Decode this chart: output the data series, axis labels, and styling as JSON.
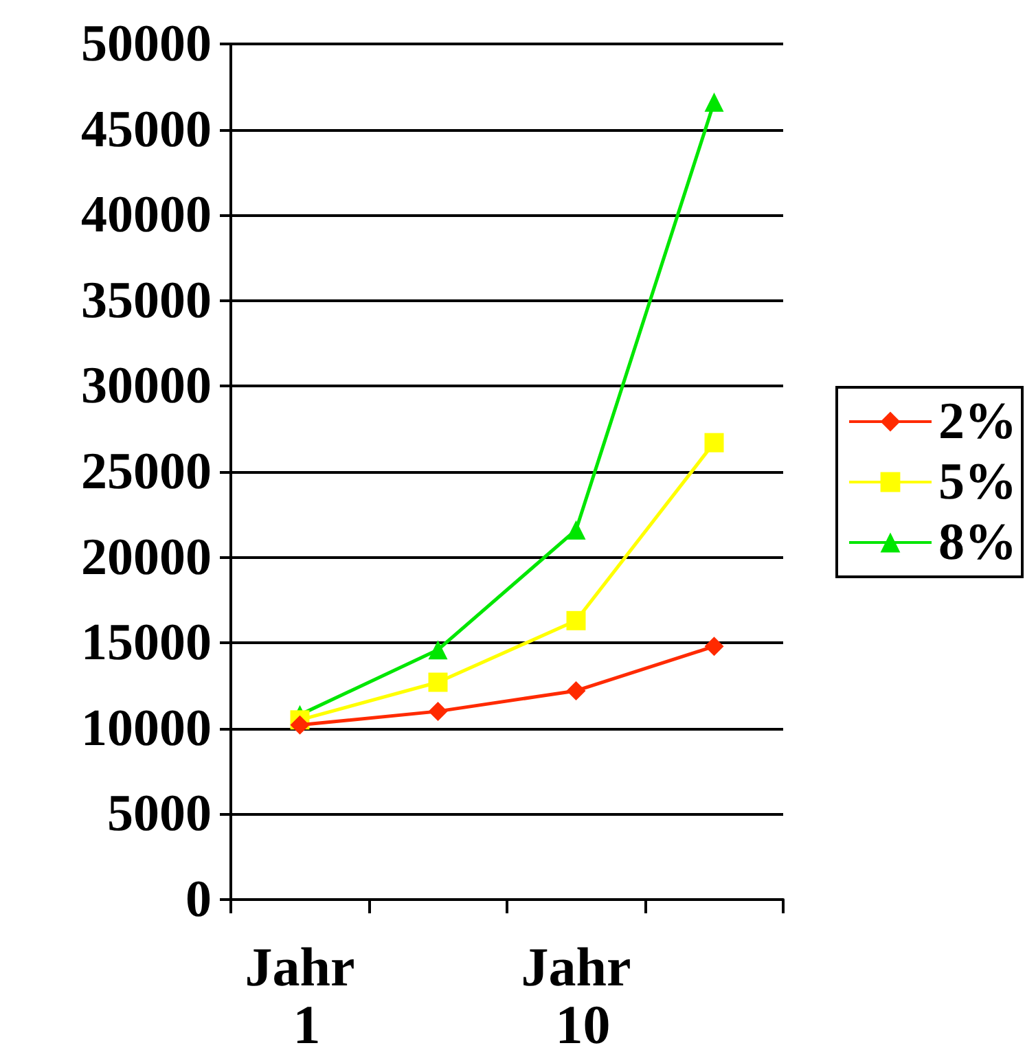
{
  "chart_data": {
    "type": "line",
    "categories": [
      "Jahr 1",
      null,
      "Jahr 10",
      null
    ],
    "series": [
      {
        "name": "2%",
        "color": "#ff2a00",
        "marker": "diamond",
        "values": [
          10200,
          11000,
          12200,
          14800
        ]
      },
      {
        "name": "5%",
        "color": "#ffff00",
        "marker": "square",
        "values": [
          10500,
          12700,
          16300,
          26700
        ]
      },
      {
        "name": "8%",
        "color": "#00e600",
        "marker": "triangle",
        "values": [
          10800,
          14600,
          21600,
          46600
        ]
      }
    ],
    "ylim": [
      0,
      50000
    ],
    "yticks": [
      0,
      5000,
      10000,
      15000,
      20000,
      25000,
      30000,
      35000,
      40000,
      45000,
      50000
    ],
    "grid": "y",
    "legend": "right"
  }
}
